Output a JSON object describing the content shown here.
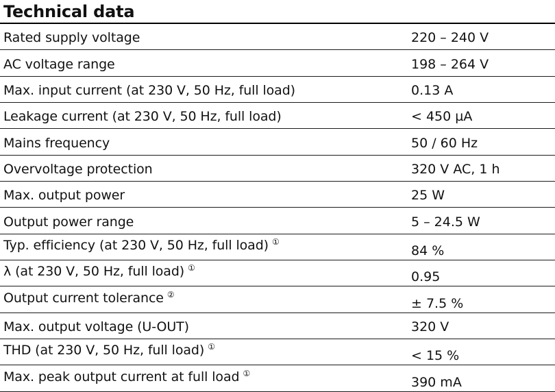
{
  "title": "Technical data",
  "rows": [
    {
      "label": "Rated supply voltage",
      "value": "220 – 240 V",
      "footnote": ""
    },
    {
      "label": "AC voltage range",
      "value": "198 – 264 V",
      "footnote": ""
    },
    {
      "label": "Max. input current (at 230 V, 50 Hz, full load)",
      "value": "0.13 A",
      "footnote": ""
    },
    {
      "label": "Leakage current (at 230 V, 50 Hz, full load)",
      "value": "< 450 µA",
      "footnote": ""
    },
    {
      "label": "Mains frequency",
      "value": "50 / 60 Hz",
      "footnote": ""
    },
    {
      "label": "Overvoltage protection",
      "value": "320 V AC, 1 h",
      "footnote": ""
    },
    {
      "label": "Max. output power",
      "value": "25 W",
      "footnote": ""
    },
    {
      "label": "Output power range",
      "value": "5 – 24.5 W",
      "footnote": ""
    },
    {
      "label": "Typ. efficiency (at 230 V, 50 Hz, full load)",
      "value": "84 %",
      "footnote": "①"
    },
    {
      "label": "λ (at 230 V, 50 Hz, full load)",
      "value": "0.95",
      "footnote": "①"
    },
    {
      "label": "Output current tolerance",
      "value": "± 7.5 %",
      "footnote": "②"
    },
    {
      "label": "Max. output voltage (U-OUT)",
      "value": "320 V",
      "footnote": ""
    },
    {
      "label": "THD (at 230 V, 50 Hz, full load)",
      "value": "< 15 %",
      "footnote": "①"
    },
    {
      "label": "Max. peak output current at full load",
      "value": "390 mA",
      "footnote": "①"
    }
  ]
}
